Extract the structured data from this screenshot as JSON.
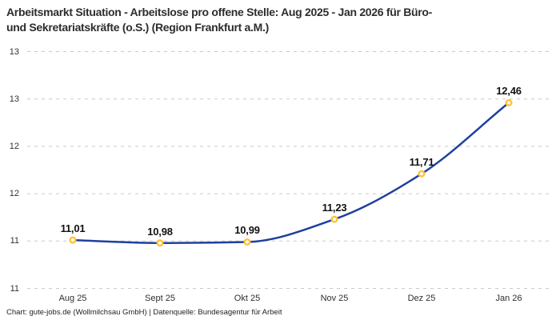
{
  "header": {
    "title_lines": [
      "Arbeitsmarkt Situation - Arbeitslose pro offene Stelle: Aug 2025 - Jan 2026 für Büro-",
      "und Sekretariatskräfte (o.S.) (Region Frankfurt a.M.)"
    ]
  },
  "chart_data": {
    "type": "line",
    "title": "Arbeitsmarkt Situation - Arbeitslose pro offene Stelle: Aug 2025 - Jan 2026 für Büro- und Sekretariatskräfte (o.S.) (Region Frankfurt a.M.)",
    "categories": [
      "Aug 25",
      "Sept 25",
      "Okt 25",
      "Nov 25",
      "Dez 25",
      "Jan 26"
    ],
    "values": [
      11.01,
      10.98,
      10.99,
      11.23,
      11.71,
      12.46
    ],
    "value_labels": [
      "11,01",
      "10,98",
      "10,99",
      "11,23",
      "11,71",
      "12,46"
    ],
    "xlabel": "",
    "ylabel": "",
    "ylim": [
      10.5,
      13.0
    ],
    "y_tick_values": [
      13.0,
      12.5,
      12.0,
      11.5,
      11.0,
      10.5
    ],
    "y_tick_labels": [
      "13",
      "13",
      "12",
      "12",
      "11",
      "11"
    ],
    "grid": "horizontal-dashed",
    "legend": "none",
    "colors": {
      "line": "#20409d",
      "marker_stroke": "#fdc335",
      "marker_fill": "#ffffff",
      "gridline": "#c9c9c9",
      "title_text": "#2d2d2d",
      "tick_text": "#333333",
      "value_text": "#111111"
    }
  },
  "footer": {
    "credit": "Chart: gute-jobs.de (Wollmilchsau GmbH) | Datenquelle: Bundesagentur für Arbeit"
  }
}
